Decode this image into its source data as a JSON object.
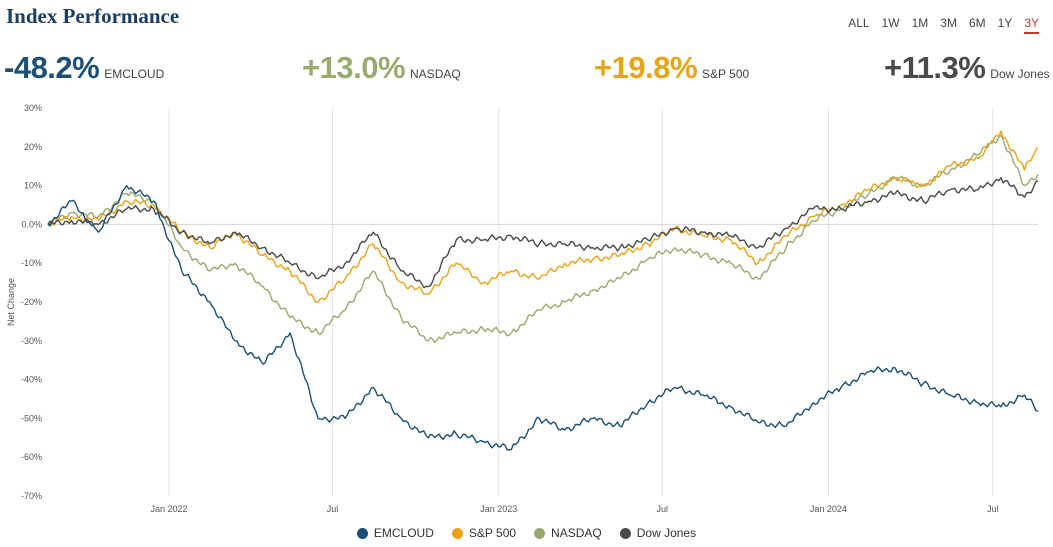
{
  "header": {
    "title": "Index Performance",
    "ranges": [
      "ALL",
      "1W",
      "1M",
      "3M",
      "6M",
      "1Y",
      "3Y"
    ],
    "active_range": "3Y"
  },
  "stats": [
    {
      "value": "-48.2%",
      "name": "EMCLOUD",
      "color": "#1b4f78"
    },
    {
      "value": "+13.0%",
      "name": "NASDAQ",
      "color": "#9aaa6e"
    },
    {
      "value": "+19.8%",
      "name": "S&P 500",
      "color": "#e8a317"
    },
    {
      "value": "+11.3%",
      "name": "Dow Jones",
      "color": "#4a4a4a"
    }
  ],
  "legend": [
    {
      "name": "EMCLOUD",
      "color": "#1b4f78"
    },
    {
      "name": "S&P 500",
      "color": "#e8a317"
    },
    {
      "name": "NASDAQ",
      "color": "#9aaa6e"
    },
    {
      "name": "Dow Jones",
      "color": "#4a4a4a"
    }
  ],
  "chart_data": {
    "type": "line",
    "xlabel": "",
    "ylabel": "Net Change",
    "ylim": [
      -70,
      30
    ],
    "yticks": [
      30,
      20,
      10,
      0,
      -10,
      -20,
      -30,
      -40,
      -50,
      -60,
      -70
    ],
    "ytick_suffix": "%",
    "xlim": [
      "2021-08-20",
      "2024-08-20"
    ],
    "xticks": [
      {
        "date": "2022-01-01",
        "label": "Jan 2022"
      },
      {
        "date": "2022-07-01",
        "label": "Jul"
      },
      {
        "date": "2023-01-01",
        "label": "Jan 2023"
      },
      {
        "date": "2023-07-01",
        "label": "Jul"
      },
      {
        "date": "2024-01-01",
        "label": "Jan 2024"
      },
      {
        "date": "2024-07-01",
        "label": "Jul"
      }
    ],
    "grid": "vertical",
    "legend_position": "bottom",
    "x": [
      "2021-08-20",
      "2021-09-15",
      "2021-10-15",
      "2021-11-15",
      "2021-12-15",
      "2022-01-15",
      "2022-02-15",
      "2022-03-15",
      "2022-04-15",
      "2022-05-15",
      "2022-06-15",
      "2022-07-15",
      "2022-08-15",
      "2022-09-15",
      "2022-10-15",
      "2022-11-15",
      "2022-12-15",
      "2023-01-15",
      "2023-02-15",
      "2023-03-15",
      "2023-04-15",
      "2023-05-15",
      "2023-06-15",
      "2023-07-15",
      "2023-08-15",
      "2023-09-15",
      "2023-10-15",
      "2023-11-15",
      "2023-12-15",
      "2024-01-15",
      "2024-02-15",
      "2024-03-15",
      "2024-04-15",
      "2024-05-15",
      "2024-06-15",
      "2024-07-10",
      "2024-08-05",
      "2024-08-20"
    ],
    "series": [
      {
        "name": "EMCLOUD",
        "color": "#1b4f78",
        "values": [
          0,
          6,
          -2,
          10,
          6,
          -12,
          -20,
          -30,
          -36,
          -28,
          -50,
          -50,
          -42,
          -50,
          -55,
          -54,
          -56,
          -58,
          -50,
          -53,
          -50,
          -52,
          -46,
          -42,
          -44,
          -47,
          -51,
          -52,
          -46,
          -42,
          -38,
          -37,
          -41,
          -44,
          -46,
          -47,
          -44,
          -48.2
        ]
      },
      {
        "name": "S&P 500",
        "color": "#e8a317",
        "values": [
          0,
          2,
          1,
          6,
          5,
          -2,
          -6,
          -2,
          -8,
          -12,
          -20,
          -14,
          -5,
          -15,
          -18,
          -10,
          -15,
          -12,
          -14,
          -10,
          -9,
          -8,
          -5,
          -1,
          -3,
          -4,
          -10,
          -3,
          2,
          5,
          9,
          12,
          10,
          15,
          17,
          24,
          14,
          19.8
        ]
      },
      {
        "name": "NASDAQ",
        "color": "#9aaa6e",
        "values": [
          0,
          3,
          2,
          8,
          6,
          -6,
          -12,
          -10,
          -16,
          -24,
          -28,
          -22,
          -12,
          -24,
          -30,
          -28,
          -27,
          -28,
          -22,
          -20,
          -17,
          -14,
          -9,
          -6,
          -8,
          -10,
          -14,
          -6,
          1,
          4,
          8,
          12,
          10,
          14,
          18,
          23,
          10,
          13.0
        ]
      },
      {
        "name": "Dow Jones",
        "color": "#4a4a4a",
        "values": [
          0,
          1,
          0,
          4,
          4,
          -2,
          -5,
          -2,
          -6,
          -10,
          -14,
          -10,
          -2,
          -12,
          -16,
          -4,
          -4,
          -3,
          -5,
          -5,
          -6,
          -6,
          -4,
          -1,
          -2,
          -3,
          -6,
          -1,
          4,
          4,
          6,
          8,
          6,
          9,
          9,
          12,
          7,
          11.3
        ]
      }
    ]
  }
}
